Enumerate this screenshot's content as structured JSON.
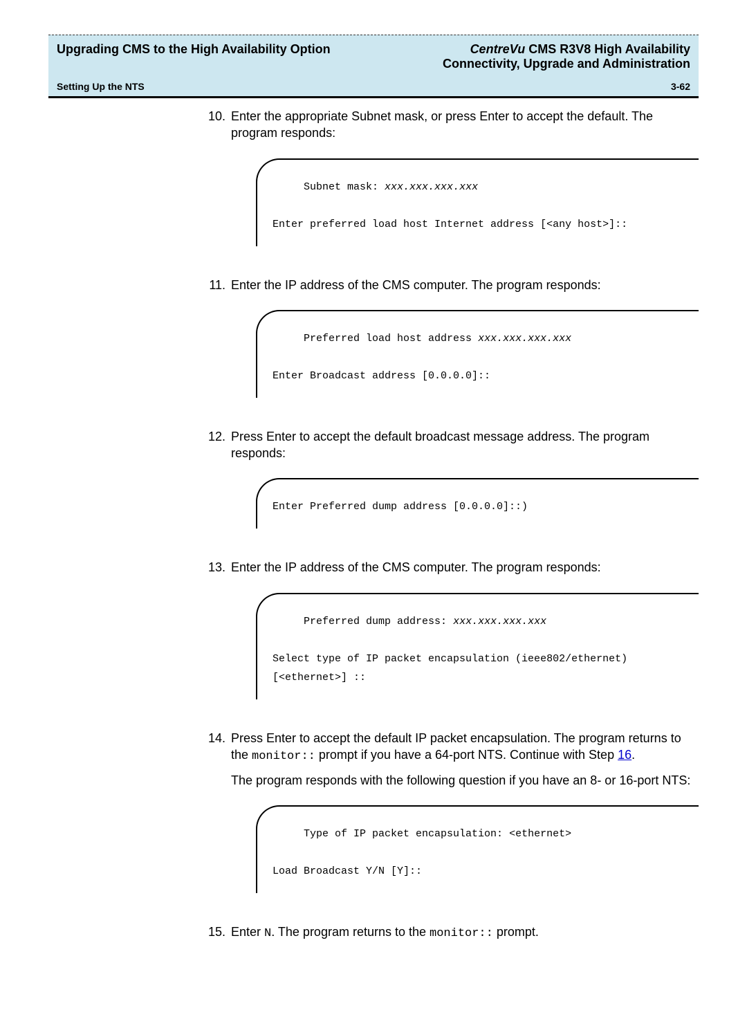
{
  "header": {
    "left_title": "Upgrading CMS to the High Availability Option",
    "right_title_prefix": "CentreVu",
    "right_title_rest": " CMS R3V8 High Availability",
    "right_subtitle": "Connectivity, Upgrade and Administration",
    "sub_left": "Setting Up the NTS",
    "sub_right": "3-62"
  },
  "steps": [
    {
      "num": "10.",
      "paras": [
        "Enter the appropriate Subnet mask, or press Enter to accept the default. The program responds:"
      ],
      "terminal": {
        "lines": [
          {
            "indent": "     ",
            "pre": "Subnet mask: ",
            "ital": "xxx.xxx.xxx.xxx",
            "post": ""
          },
          {
            "blank": true
          },
          {
            "indent": "",
            "pre": "Enter preferred load host Internet address [<any host>]::",
            "ital": "",
            "post": ""
          }
        ]
      }
    },
    {
      "num": "11.",
      "paras": [
        "Enter the IP address of the CMS computer. The program responds:"
      ],
      "terminal": {
        "lines": [
          {
            "indent": "     ",
            "pre": "Preferred load host address ",
            "ital": "xxx.xxx.xxx.xxx",
            "post": ""
          },
          {
            "blank": true
          },
          {
            "indent": "",
            "pre": "Enter Broadcast address [0.0.0.0]::",
            "ital": "",
            "post": ""
          }
        ]
      }
    },
    {
      "num": "12.",
      "paras": [
        "Press Enter to accept the default broadcast message address. The program responds:"
      ],
      "terminal": {
        "lines": [
          {
            "indent": "",
            "pre": "Enter Preferred dump address [0.0.0.0]::)",
            "ital": "",
            "post": ""
          }
        ]
      }
    },
    {
      "num": "13.",
      "paras": [
        "Enter the IP address of the CMS computer. The program responds:"
      ],
      "terminal": {
        "lines": [
          {
            "indent": "     ",
            "pre": "Preferred dump address: ",
            "ital": "xxx.xxx.xxx.xxx",
            "post": ""
          },
          {
            "blank": true
          },
          {
            "indent": "",
            "pre": "Select type of IP packet encapsulation (ieee802/ethernet)",
            "ital": "",
            "post": ""
          },
          {
            "indent": "",
            "pre": "[<ethernet>] ::",
            "ital": "",
            "post": ""
          }
        ]
      }
    },
    {
      "num": "14.",
      "rich": true,
      "p1_a": "Press Enter to accept the default IP packet encapsulation. The program returns to the ",
      "p1_mono": "monitor::",
      "p1_b": " prompt if you have a 64-port NTS. Continue with Step ",
      "p1_link": "16",
      "p1_c": ".",
      "p2": "The program responds with the following question if you have an 8- or 16-port NTS:",
      "terminal": {
        "lines": [
          {
            "indent": "     ",
            "pre": "Type of IP packet encapsulation: <ethernet>",
            "ital": "",
            "post": ""
          },
          {
            "blank": true
          },
          {
            "indent": "",
            "pre": "Load Broadcast Y/N [Y]::",
            "ital": "",
            "post": ""
          }
        ]
      }
    },
    {
      "num": "15.",
      "rich15": true,
      "a": "Enter ",
      "mono1": "N",
      "b": ". The program returns to the ",
      "mono2": "monitor::",
      "c": " prompt."
    }
  ]
}
